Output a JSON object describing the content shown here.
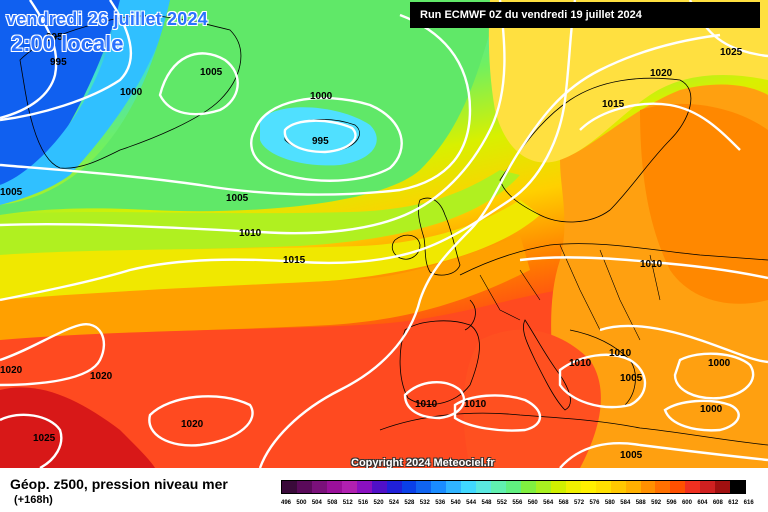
{
  "header": {
    "date": "vendredi 26 juillet 2024",
    "time": "2:00 locale",
    "run": "Run ECMWF 0Z du vendredi 19 juillet 2024"
  },
  "copyright": "Copyright 2024 Meteociel.fr",
  "legend": {
    "title": "Géop. z500, pression niveau mer",
    "subtitle": "(+168h)",
    "scale_values": [
      "496",
      "500",
      "504",
      "508",
      "512",
      "516",
      "520",
      "524",
      "528",
      "532",
      "536",
      "540",
      "544",
      "548",
      "552",
      "556",
      "560",
      "564",
      "568",
      "572",
      "576",
      "580",
      "584",
      "588",
      "592",
      "596",
      "600",
      "604",
      "608",
      "612",
      "616"
    ],
    "scale_colors": [
      "#3a0a3a",
      "#5a0a5a",
      "#7a107a",
      "#9a109a",
      "#b020b0",
      "#8a10c0",
      "#5010c8",
      "#2020d8",
      "#0a40e8",
      "#1064f0",
      "#1a8cff",
      "#30b4ff",
      "#40d8ff",
      "#5ae8e0",
      "#60f0b0",
      "#60f080",
      "#80f040",
      "#a8f020",
      "#d0f000",
      "#f0f000",
      "#fff000",
      "#ffe000",
      "#ffc800",
      "#ffb000",
      "#ff9000",
      "#ff7000",
      "#ff5000",
      "#f03020",
      "#d02020",
      "#a01010",
      "#000000"
    ]
  },
  "isobars": [
    {
      "value": "995",
      "label": "995"
    },
    {
      "value": "1000",
      "label": "1000"
    },
    {
      "value": "1005",
      "label": "1005"
    },
    {
      "value": "1010",
      "label": "1010"
    },
    {
      "value": "1015",
      "label": "1015"
    },
    {
      "value": "1020",
      "label": "1020"
    },
    {
      "value": "1025",
      "label": "1025"
    }
  ],
  "map_labels": [
    "995",
    "995",
    "1000",
    "1005",
    "1000",
    "995",
    "1005",
    "1010",
    "1015",
    "1020",
    "1025",
    "1015",
    "1010",
    "1010",
    "1010",
    "1005",
    "1000",
    "1000",
    "1005",
    "1010",
    "1010",
    "1020",
    "1020",
    "1020",
    "1025"
  ]
}
